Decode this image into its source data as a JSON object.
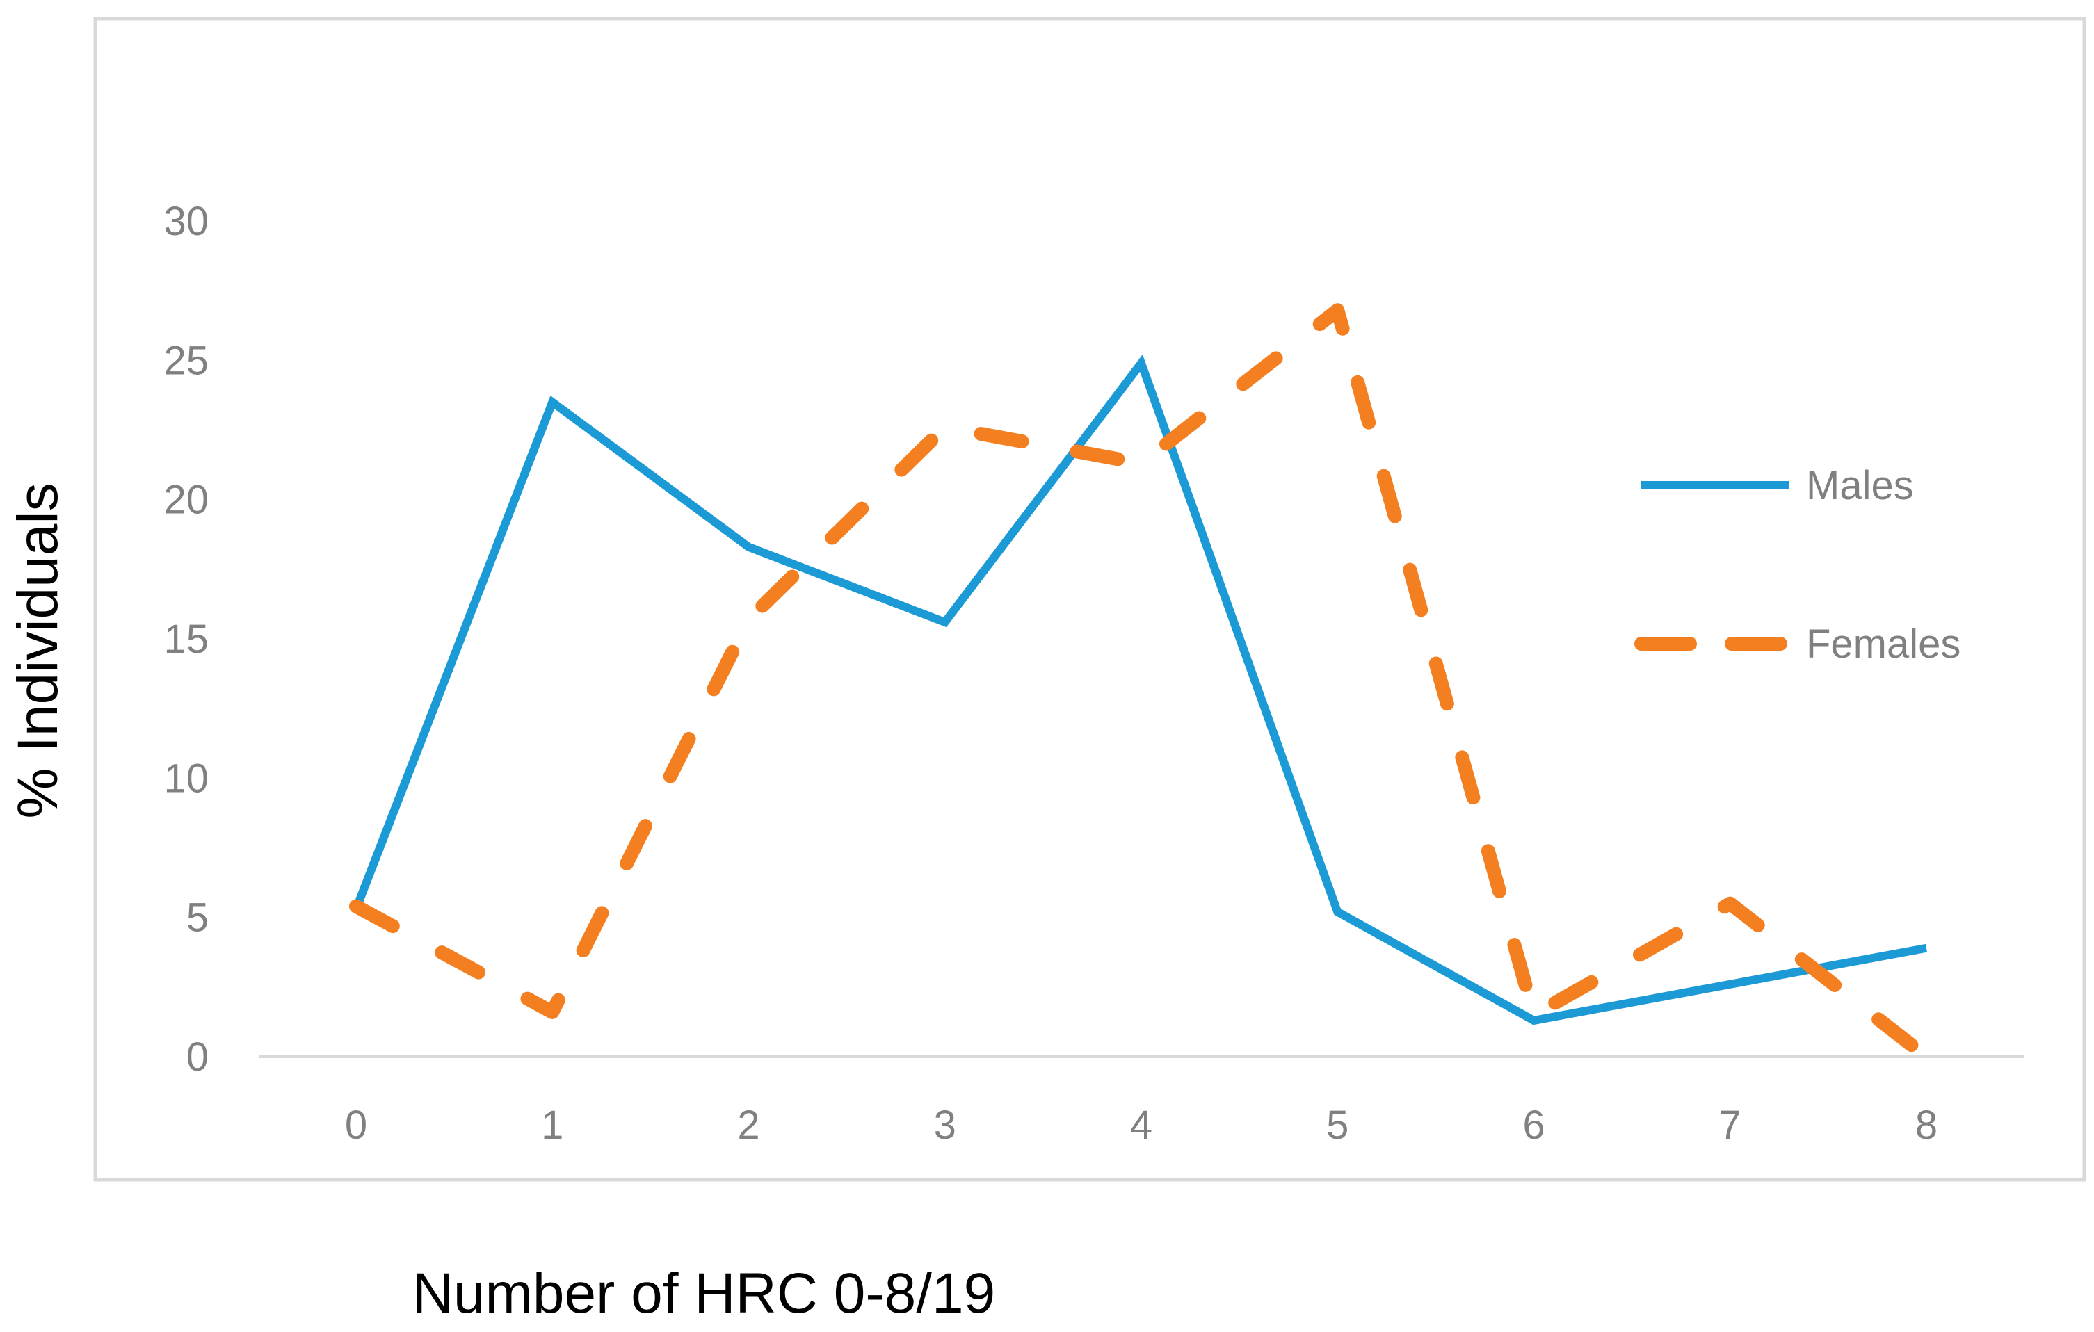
{
  "chart_data": {
    "type": "line",
    "x": [
      0,
      1,
      2,
      3,
      4,
      5,
      6,
      7,
      8
    ],
    "series": [
      {
        "name": "Males",
        "values": [
          5.3,
          23.5,
          18.3,
          15.6,
          24.9,
          5.2,
          1.3,
          2.6,
          3.9
        ],
        "color": "#1b9ad6",
        "line_style": "solid"
      },
      {
        "name": "Females",
        "values": [
          5.4,
          1.6,
          15.7,
          22.6,
          21.3,
          26.8,
          1.5,
          5.5,
          0.0
        ],
        "color": "#f47f20",
        "line_style": "dashed"
      }
    ],
    "xlabel": "Number of HRC 0-8/19",
    "ylabel": "% Individuals",
    "xlim": [
      0,
      8
    ],
    "ylim": [
      0,
      30
    ],
    "y_ticks": [
      0,
      5,
      10,
      15,
      20,
      25,
      30
    ],
    "x_ticks": [
      0,
      1,
      2,
      3,
      4,
      5,
      6,
      7,
      8
    ],
    "grid": false,
    "legend_position": "right",
    "colors": {
      "axis_line": "#d9d9d9",
      "frame": "#d9d9d9",
      "tick_text": "#808080",
      "axis_title": "#000000"
    }
  }
}
